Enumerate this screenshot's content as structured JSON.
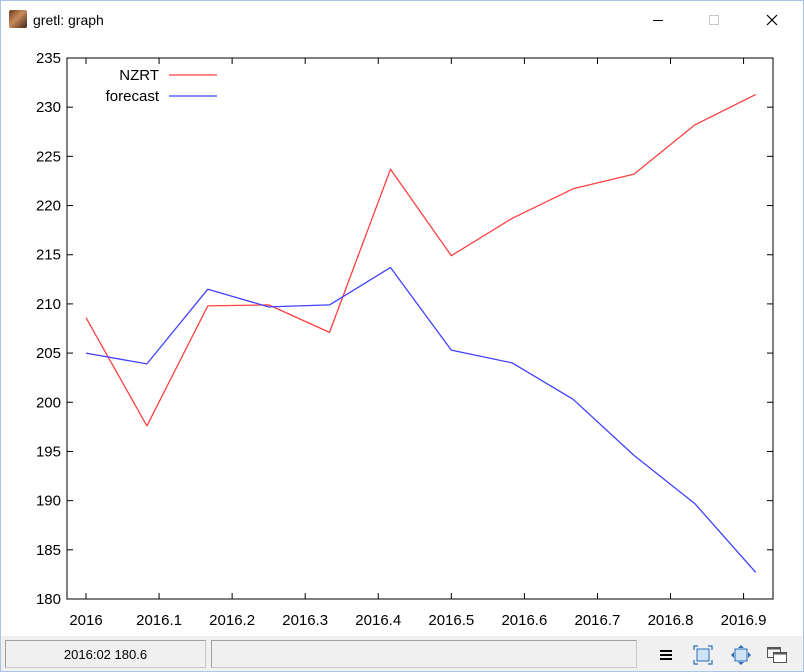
{
  "window": {
    "title": "gretl: graph",
    "icon": "gretl-app-icon"
  },
  "chart_data": {
    "type": "line",
    "title": "",
    "xlabel": "",
    "ylabel": "",
    "xlim": [
      2016,
      2016.917
    ],
    "ylim": [
      180,
      235
    ],
    "x_ticks": [
      "2016",
      "2016.1",
      "2016.2",
      "2016.3",
      "2016.4",
      "2016.5",
      "2016.6",
      "2016.7",
      "2016.8",
      "2016.9"
    ],
    "y_ticks": [
      "180",
      "185",
      "190",
      "195",
      "200",
      "205",
      "210",
      "215",
      "220",
      "225",
      "230",
      "235"
    ],
    "legend_position": "top-left",
    "grid": false,
    "x": [
      2016.0,
      2016.0833,
      2016.1667,
      2016.25,
      2016.3333,
      2016.4167,
      2016.5,
      2016.5833,
      2016.6667,
      2016.75,
      2016.8333,
      2016.9167
    ],
    "series": [
      {
        "name": "NZRT",
        "color": "#ff4040",
        "values": [
          208.6,
          197.6,
          209.8,
          209.9,
          207.1,
          223.7,
          214.9,
          218.7,
          221.7,
          223.2,
          228.2,
          231.3
        ]
      },
      {
        "name": "forecast",
        "color": "#4040ff",
        "values": [
          205.0,
          203.9,
          211.5,
          209.7,
          209.9,
          213.7,
          205.3,
          204.0,
          200.3,
          194.6,
          189.7,
          182.7
        ]
      }
    ]
  },
  "statusbar": {
    "coords": "2016:02 180.6"
  },
  "toolbar": {
    "buttons": [
      "menu-icon",
      "zoom-icon",
      "move-icon",
      "windows-icon"
    ]
  }
}
